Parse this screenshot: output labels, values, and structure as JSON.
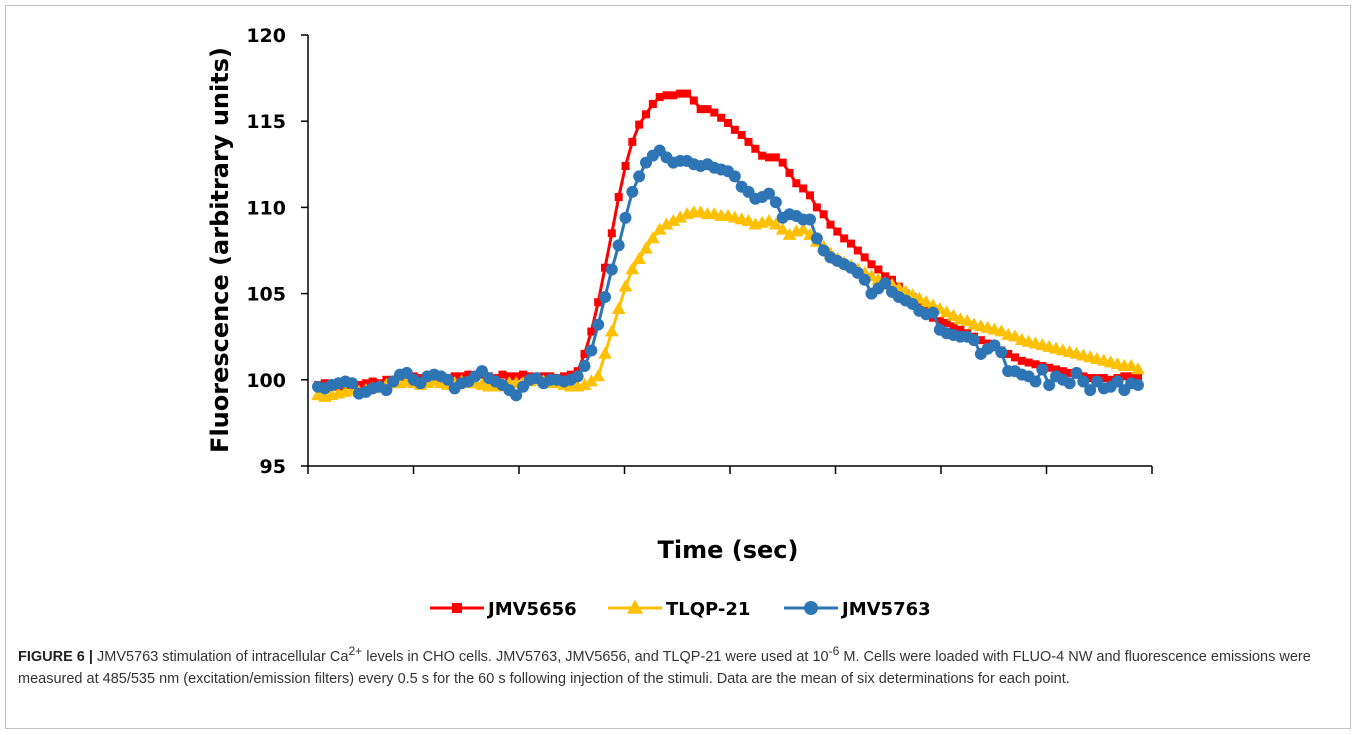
{
  "chart_data": {
    "type": "line",
    "xlabel": "Time (sec)",
    "ylabel": "Fluorescence (arbitrary units)",
    "ylim": [
      95,
      120
    ],
    "yticks": [
      95,
      100,
      105,
      110,
      115,
      120
    ],
    "xtick_count": 9,
    "n_points": 121,
    "legend_position": "bottom",
    "series": [
      {
        "name": "JMV5656",
        "color": "#ff0000",
        "marker": "square",
        "values": [
          99.7,
          99.8,
          99.7,
          99.6,
          99.7,
          99.8,
          99.7,
          99.8,
          99.9,
          99.8,
          100.0,
          100.0,
          100.1,
          100.2,
          100.2,
          100.1,
          100.2,
          100.3,
          100.2,
          100.1,
          100.2,
          100.2,
          100.3,
          100.2,
          100.3,
          100.2,
          100.1,
          100.3,
          100.2,
          100.2,
          100.3,
          100.2,
          100.1,
          100.2,
          100.2,
          100.1,
          100.2,
          100.3,
          100.5,
          101.5,
          102.8,
          104.5,
          106.5,
          108.5,
          110.6,
          112.4,
          113.8,
          114.8,
          115.4,
          116.0,
          116.4,
          116.5,
          116.5,
          116.6,
          116.6,
          116.2,
          115.7,
          115.7,
          115.5,
          115.2,
          114.9,
          114.5,
          114.2,
          113.8,
          113.4,
          113.0,
          112.9,
          112.9,
          112.6,
          112.0,
          111.4,
          111.1,
          110.7,
          110.0,
          109.6,
          109.0,
          108.6,
          108.2,
          107.9,
          107.5,
          107.1,
          106.7,
          106.4,
          106.0,
          105.8,
          105.4,
          105.0,
          104.8,
          104.4,
          104.0,
          103.6,
          103.4,
          103.3,
          103.1,
          102.9,
          102.7,
          102.5,
          102.3,
          102.1,
          101.9,
          101.7,
          101.5,
          101.3,
          101.1,
          101.0,
          100.9,
          100.8,
          100.7,
          100.6,
          100.5,
          100.4,
          100.3,
          100.2,
          100.1,
          100.1,
          100.1,
          100.0,
          100.1,
          100.2,
          100.2,
          100.2
        ]
      },
      {
        "name": "TLQP-21",
        "color": "#ffc000",
        "marker": "triangle",
        "values": [
          99.1,
          99.0,
          99.1,
          99.2,
          99.3,
          99.4,
          99.3,
          99.4,
          99.5,
          99.6,
          99.7,
          99.8,
          99.8,
          99.9,
          99.8,
          99.7,
          99.8,
          99.9,
          99.8,
          99.7,
          99.8,
          99.9,
          99.8,
          99.8,
          99.7,
          99.6,
          99.6,
          99.7,
          99.8,
          99.8,
          99.8,
          99.9,
          100.0,
          99.9,
          99.8,
          99.8,
          99.7,
          99.6,
          99.6,
          99.7,
          99.9,
          100.2,
          101.5,
          102.8,
          104.1,
          105.4,
          106.4,
          107.0,
          107.6,
          108.2,
          108.7,
          109.0,
          109.2,
          109.4,
          109.6,
          109.7,
          109.7,
          109.6,
          109.6,
          109.5,
          109.5,
          109.4,
          109.3,
          109.2,
          109.0,
          109.1,
          109.2,
          109.0,
          108.7,
          108.4,
          108.6,
          108.7,
          108.4,
          108.0,
          107.7,
          107.3,
          107.0,
          106.8,
          106.6,
          106.4,
          106.2,
          106.0,
          105.8,
          105.6,
          105.5,
          105.3,
          105.1,
          104.9,
          104.7,
          104.5,
          104.3,
          104.1,
          103.9,
          103.7,
          103.5,
          103.4,
          103.2,
          103.1,
          103.0,
          102.9,
          102.8,
          102.6,
          102.5,
          102.3,
          102.2,
          102.1,
          102.0,
          101.9,
          101.8,
          101.7,
          101.6,
          101.5,
          101.4,
          101.3,
          101.2,
          101.1,
          101.0,
          100.9,
          100.8,
          100.8,
          100.6
        ]
      },
      {
        "name": "JMV5763",
        "color": "#2e75b6",
        "marker": "circle",
        "values": [
          99.6,
          99.5,
          99.7,
          99.8,
          99.9,
          99.8,
          99.2,
          99.3,
          99.5,
          99.6,
          99.4,
          99.9,
          100.3,
          100.4,
          100.0,
          99.8,
          100.2,
          100.3,
          100.2,
          100.0,
          99.5,
          99.8,
          99.9,
          100.2,
          100.5,
          100.1,
          99.9,
          99.7,
          99.4,
          99.1,
          99.6,
          100.0,
          100.1,
          99.8,
          100.0,
          100.0,
          99.9,
          100.0,
          100.2,
          100.8,
          101.7,
          103.2,
          104.8,
          106.4,
          107.8,
          109.4,
          110.9,
          111.8,
          112.6,
          113.0,
          113.3,
          112.9,
          112.6,
          112.7,
          112.7,
          112.5,
          112.4,
          112.5,
          112.3,
          112.2,
          112.1,
          111.8,
          111.2,
          110.9,
          110.5,
          110.6,
          110.8,
          110.3,
          109.4,
          109.6,
          109.5,
          109.3,
          109.3,
          108.2,
          107.5,
          107.1,
          106.9,
          106.7,
          106.5,
          106.2,
          105.8,
          105.0,
          105.3,
          105.6,
          105.1,
          104.8,
          104.6,
          104.4,
          104.0,
          103.8,
          103.9,
          102.9,
          102.7,
          102.6,
          102.5,
          102.5,
          102.3,
          101.5,
          101.8,
          102.0,
          101.6,
          100.5,
          100.5,
          100.3,
          100.2,
          99.9,
          100.6,
          99.7,
          100.2,
          100.0,
          99.8,
          100.4,
          99.9,
          99.4,
          99.9,
          99.5,
          99.6,
          99.9,
          99.4,
          99.8,
          99.7
        ]
      }
    ]
  },
  "caption": {
    "label": "FIGURE 6 |",
    "text_1": " JMV5763 stimulation of intracellular Ca",
    "sup_1": "2+",
    "text_2": " levels in CHO cells. JMV5763, JMV5656, and TLQP-21 were used at 10",
    "sup_2": "-6",
    "text_3": " M. Cells were loaded with FLUO-4 NW and fluorescence emissions were measured at 485/535 nm (excitation/emission filters) every 0.5 s for the 60 s following injection of the stimuli. Data are the mean of six determinations for each point."
  }
}
